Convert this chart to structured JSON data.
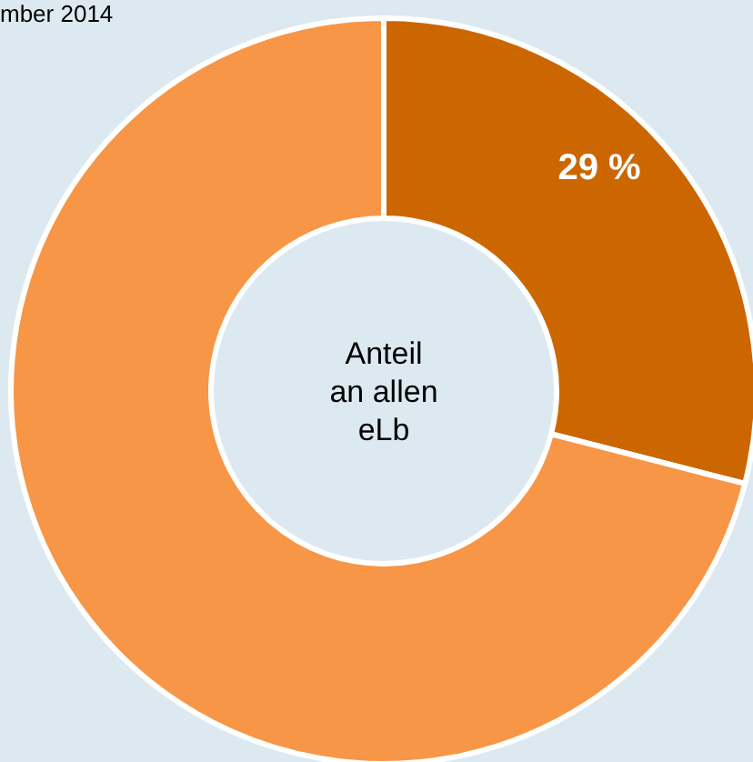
{
  "chart_data": {
    "type": "donut",
    "title": "mber 2014",
    "categories": [
      null,
      null
    ],
    "values": [
      29,
      71
    ],
    "colors": [
      "#cc6600",
      "#f79646"
    ],
    "value_labels": [
      "29 %",
      null
    ],
    "annotations": [
      "Anteil an allen eLb"
    ]
  }
}
